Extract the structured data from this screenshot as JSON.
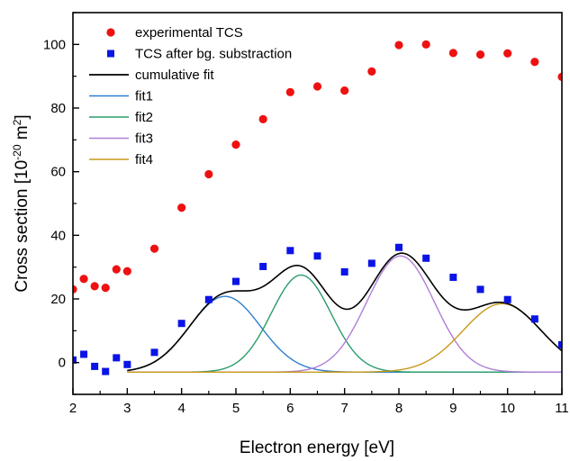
{
  "chart_data": {
    "type": "scatter",
    "xlabel": "Electron energy [eV]",
    "ylabel": {
      "prefix": "Cross section [10",
      "exp1": "-20",
      "mid": " m",
      "exp2": "2",
      "suffix": "]"
    },
    "xlim": [
      2,
      11
    ],
    "ylim": [
      -10,
      110
    ],
    "xticks": [
      "2",
      "3",
      "4",
      "5",
      "6",
      "7",
      "8",
      "9",
      "10",
      "11"
    ],
    "yticks": [
      "0",
      "20",
      "40",
      "60",
      "80",
      "100"
    ],
    "grid": false,
    "legend_position": "top-left",
    "series": [
      {
        "name": "experimental TCS",
        "kind": "points",
        "marker": "circle",
        "color": "#ee1111",
        "x": [
          2.0,
          2.2,
          2.4,
          2.6,
          2.8,
          3.0,
          3.5,
          4.0,
          4.5,
          5.0,
          5.5,
          6.0,
          6.5,
          7.0,
          7.5,
          8.0,
          8.5,
          9.0,
          9.5,
          10.0,
          10.5,
          11.0
        ],
        "y": [
          23.0,
          26.3,
          24.0,
          23.5,
          29.3,
          28.7,
          35.8,
          48.7,
          59.2,
          68.5,
          76.5,
          85.0,
          86.8,
          85.5,
          91.5,
          99.8,
          100.0,
          97.3,
          96.8,
          97.2,
          94.5,
          89.8
        ]
      },
      {
        "name": "TCS after bg. substraction",
        "kind": "points",
        "marker": "square",
        "color": "#0a14e6",
        "x": [
          2.0,
          2.2,
          2.4,
          2.6,
          2.8,
          3.0,
          3.5,
          4.0,
          4.5,
          5.0,
          5.5,
          6.0,
          6.5,
          7.0,
          7.5,
          8.0,
          8.5,
          9.0,
          9.5,
          10.0,
          10.5,
          11.0
        ],
        "y": [
          0.8,
          2.6,
          -1.2,
          -2.8,
          1.5,
          -0.6,
          3.2,
          12.3,
          19.8,
          25.5,
          30.2,
          35.2,
          33.5,
          28.5,
          31.2,
          36.2,
          32.8,
          26.8,
          23.0,
          19.8,
          13.7,
          5.6
        ]
      },
      {
        "name": "cumulative fit",
        "kind": "sum",
        "color": "#000000",
        "x_start": 3.0,
        "baseline": -3.0
      },
      {
        "name": "fit1",
        "kind": "gaussian",
        "color": "#2e7fd0",
        "baseline": -3.0,
        "center": 4.8,
        "amplitude": 23.8,
        "sigma": 0.65
      },
      {
        "name": "fit2",
        "kind": "gaussian",
        "color": "#2a9d6a",
        "baseline": -3.0,
        "center": 6.2,
        "amplitude": 30.5,
        "sigma": 0.55
      },
      {
        "name": "fit3",
        "kind": "gaussian",
        "color": "#b07fd6",
        "baseline": -3.0,
        "center": 8.03,
        "amplitude": 36.5,
        "sigma": 0.62
      },
      {
        "name": "fit4",
        "kind": "gaussian",
        "color": "#c89a1a",
        "baseline": -3.0,
        "center": 9.9,
        "amplitude": 21.5,
        "sigma": 0.72
      }
    ]
  }
}
